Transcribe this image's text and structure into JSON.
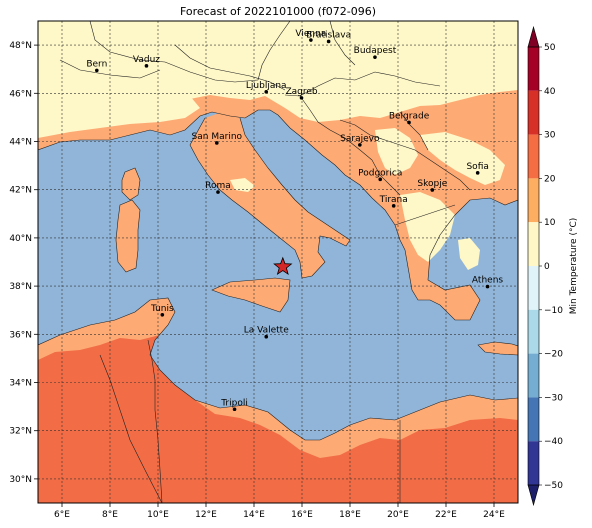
{
  "title": "Forecast of 2022101000 (f072-096)",
  "map": {
    "lon_range": [
      5,
      25
    ],
    "lat_range": [
      29,
      49
    ],
    "x_ticks": [
      {
        "lon": 6,
        "label": "6°E"
      },
      {
        "lon": 8,
        "label": "8°E"
      },
      {
        "lon": 10,
        "label": "10°E"
      },
      {
        "lon": 12,
        "label": "12°E"
      },
      {
        "lon": 14,
        "label": "14°E"
      },
      {
        "lon": 16,
        "label": "16°E"
      },
      {
        "lon": 18,
        "label": "18°E"
      },
      {
        "lon": 20,
        "label": "20°E"
      },
      {
        "lon": 22,
        "label": "22°E"
      },
      {
        "lon": 24,
        "label": "24°E"
      }
    ],
    "y_ticks": [
      {
        "lat": 30,
        "label": "30°N"
      },
      {
        "lat": 32,
        "label": "32°N"
      },
      {
        "lat": 34,
        "label": "34°N"
      },
      {
        "lat": 36,
        "label": "36°N"
      },
      {
        "lat": 38,
        "label": "38°N"
      },
      {
        "lat": 40,
        "label": "40°N"
      },
      {
        "lat": 42,
        "label": "42°N"
      },
      {
        "lat": 44,
        "label": "44°N"
      },
      {
        "lat": 46,
        "label": "46°N"
      },
      {
        "lat": 48,
        "label": "48°N"
      }
    ],
    "gridlines": true,
    "marker": {
      "type": "star",
      "lon": 15.2,
      "lat": 38.8,
      "color": "#d62728"
    },
    "cities": [
      {
        "name": "Bern",
        "lon": 7.45,
        "lat": 46.95
      },
      {
        "name": "Vaduz",
        "lon": 9.52,
        "lat": 47.14
      },
      {
        "name": "Vienna",
        "lon": 16.37,
        "lat": 48.21
      },
      {
        "name": "Bratislava",
        "lon": 17.11,
        "lat": 48.15
      },
      {
        "name": "Budapest",
        "lon": 19.04,
        "lat": 47.5
      },
      {
        "name": "Ljubljana",
        "lon": 14.51,
        "lat": 46.06
      },
      {
        "name": "Zagreb",
        "lon": 15.98,
        "lat": 45.81
      },
      {
        "name": "Belgrade",
        "lon": 20.46,
        "lat": 44.79
      },
      {
        "name": "San Marino",
        "lon": 12.45,
        "lat": 43.94
      },
      {
        "name": "Sarajevo",
        "lon": 18.41,
        "lat": 43.86
      },
      {
        "name": "Sofia",
        "lon": 23.32,
        "lat": 42.7
      },
      {
        "name": "Podgorica",
        "lon": 19.26,
        "lat": 42.43
      },
      {
        "name": "Skopje",
        "lon": 21.43,
        "lat": 41.99
      },
      {
        "name": "Roma",
        "lon": 12.5,
        "lat": 41.9
      },
      {
        "name": "Tirana",
        "lon": 19.82,
        "lat": 41.33
      },
      {
        "name": "Athens",
        "lon": 23.73,
        "lat": 37.98
      },
      {
        "name": "Tunis",
        "lon": 10.18,
        "lat": 36.81
      },
      {
        "name": "La Valette",
        "lon": 14.51,
        "lat": 35.9
      },
      {
        "name": "Tripoli",
        "lon": 13.19,
        "lat": 32.89
      }
    ]
  },
  "colorbar": {
    "label": "Min Temperature (°C)",
    "ticks": [
      {
        "value": 50,
        "label": "50"
      },
      {
        "value": 40,
        "label": "40"
      },
      {
        "value": 30,
        "label": "30"
      },
      {
        "value": 20,
        "label": "20"
      },
      {
        "value": 10,
        "label": "10"
      },
      {
        "value": 0,
        "label": "0"
      },
      {
        "value": -10,
        "label": "−10"
      },
      {
        "value": -20,
        "label": "−20"
      },
      {
        "value": -30,
        "label": "−30"
      },
      {
        "value": -40,
        "label": "−40"
      },
      {
        "value": -50,
        "label": "−50"
      }
    ],
    "range": [
      -50,
      50
    ],
    "bins": [
      {
        "from": 40,
        "to": 50,
        "color": "#a50026"
      },
      {
        "from": 30,
        "to": 40,
        "color": "#d73027"
      },
      {
        "from": 20,
        "to": 30,
        "color": "#f46d43"
      },
      {
        "from": 10,
        "to": 20,
        "color": "#fdae61"
      },
      {
        "from": 0,
        "to": 10,
        "color": "#fff7c5"
      },
      {
        "from": -10,
        "to": 0,
        "color": "#e0f3f8"
      },
      {
        "from": -20,
        "to": -10,
        "color": "#abd9e9"
      },
      {
        "from": -30,
        "to": -20,
        "color": "#74add1"
      },
      {
        "from": -40,
        "to": -30,
        "color": "#4575b4"
      },
      {
        "from": -50,
        "to": -40,
        "color": "#313695"
      }
    ],
    "extend_top_color": "#7f0024",
    "extend_bottom_color": "#1d1f6b"
  },
  "colors": {
    "sea": "#91b5d8",
    "band_10_20": "#fdaa74",
    "band_0_10": "#fef7c7",
    "band_20_30": "#f26c46"
  }
}
